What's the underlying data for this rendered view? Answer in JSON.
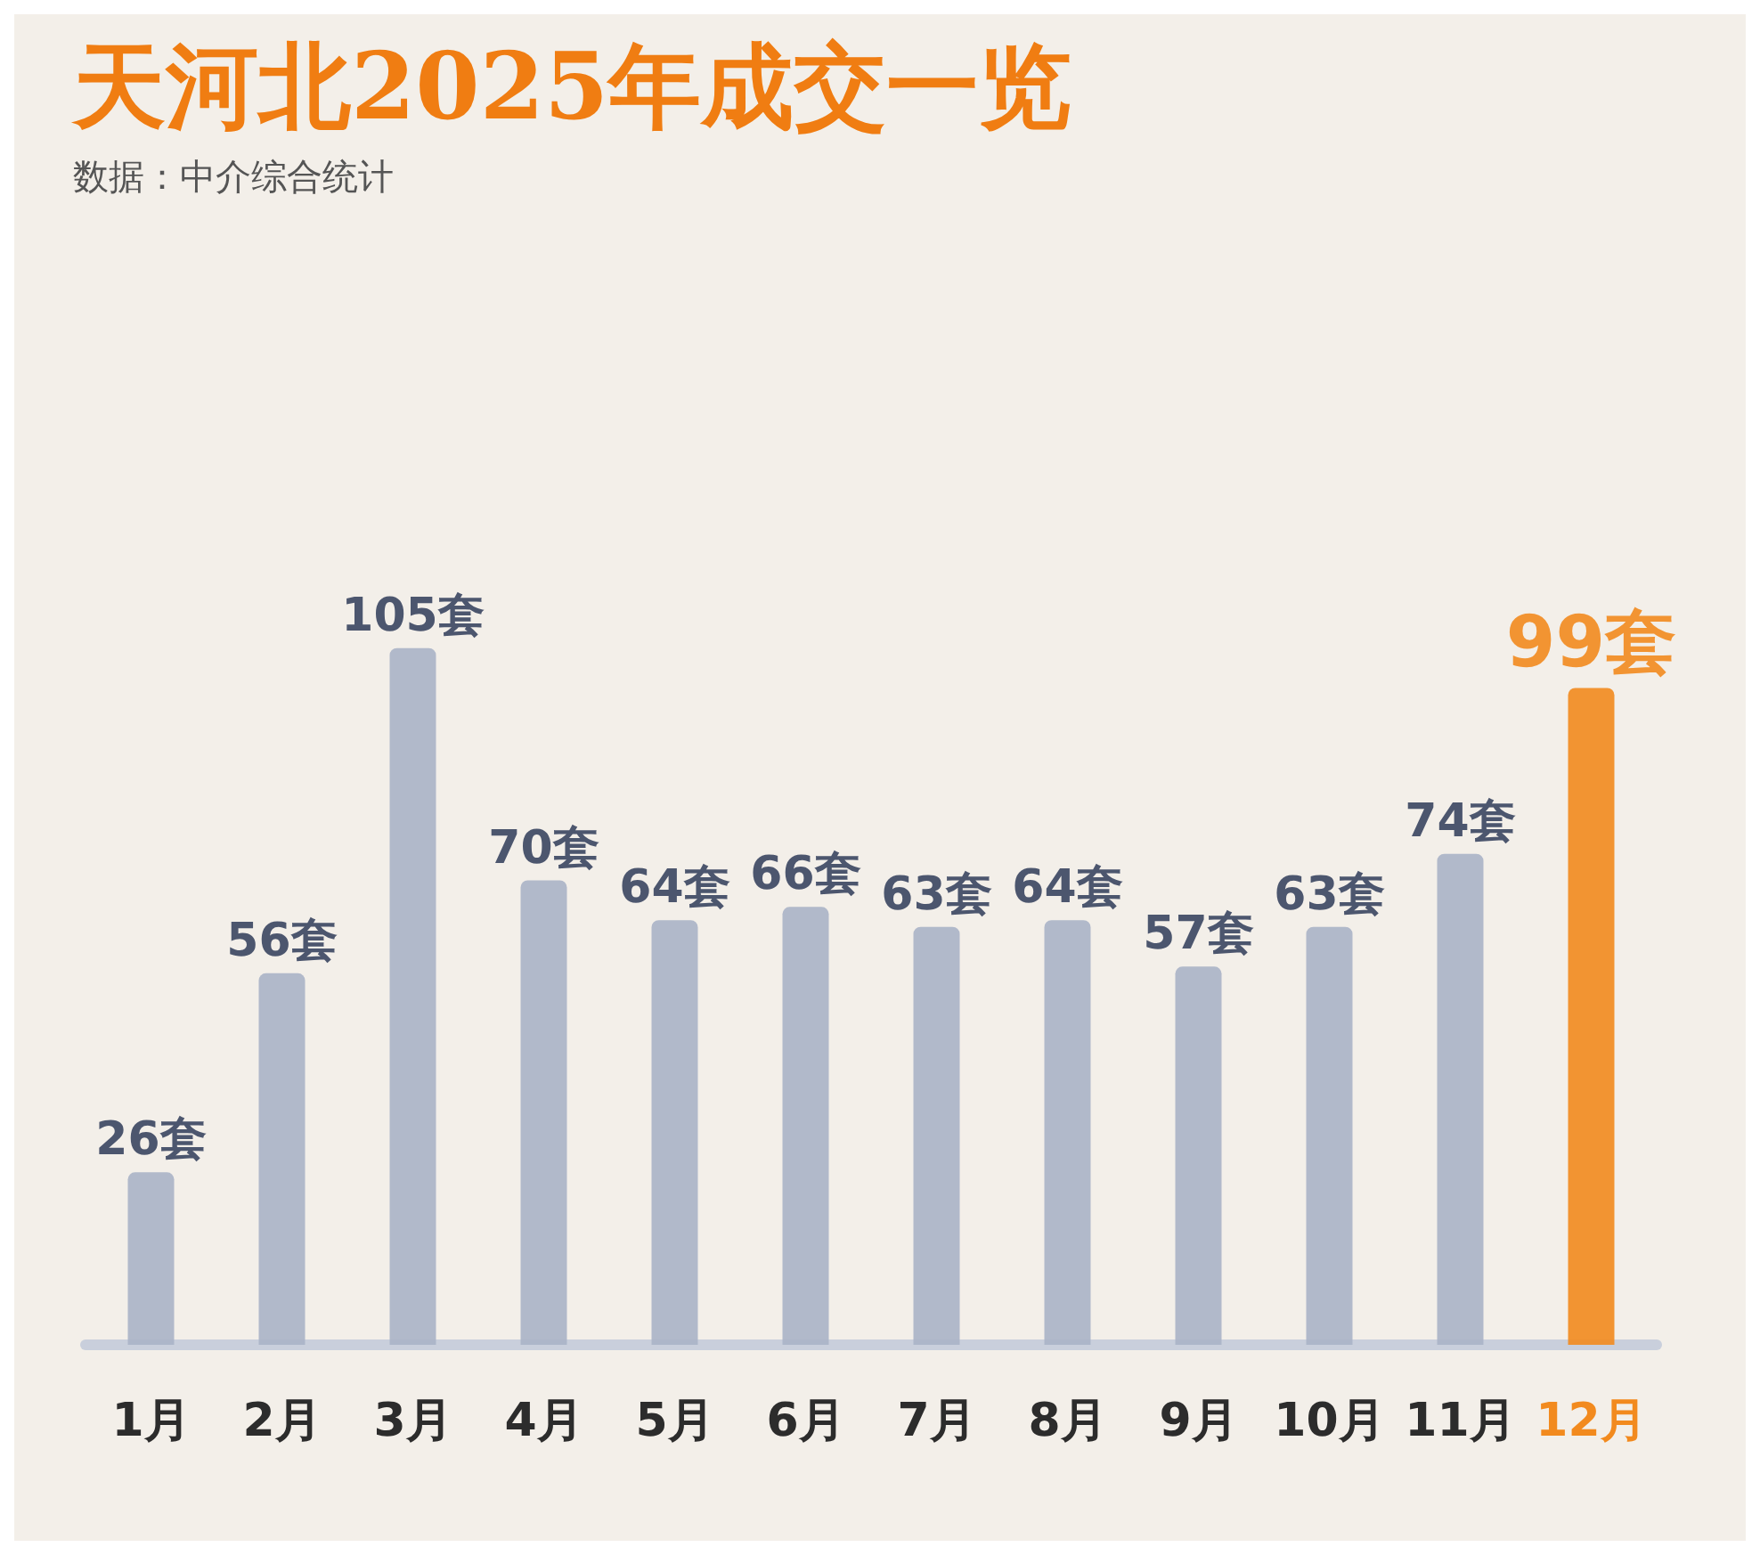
{
  "chart_data": {
    "type": "bar",
    "title": "天河北2025年成交一览",
    "subtitle": "数据：中介综合统计",
    "categories": [
      "1月",
      "2月",
      "3月",
      "4月",
      "5月",
      "6月",
      "7月",
      "8月",
      "9月",
      "10月",
      "11月",
      "12月"
    ],
    "values": [
      26,
      56,
      105,
      70,
      64,
      66,
      63,
      64,
      57,
      63,
      74,
      99
    ],
    "colors": [
      "#aab3c7",
      "#aab3c7",
      "#aab3c7",
      "#aab3c7",
      "#aab3c7",
      "#aab3c7",
      "#aab3c7",
      "#aab3c7",
      "#aab3c7",
      "#aab3c7",
      "#aab3c7",
      "#f28a1e"
    ],
    "value_labels": [
      "26套",
      "56套",
      "105套",
      "70套",
      "64套",
      "66套",
      "63套",
      "64套",
      "57套",
      "63套",
      "74套",
      "99套"
    ],
    "grid": false
  }
}
